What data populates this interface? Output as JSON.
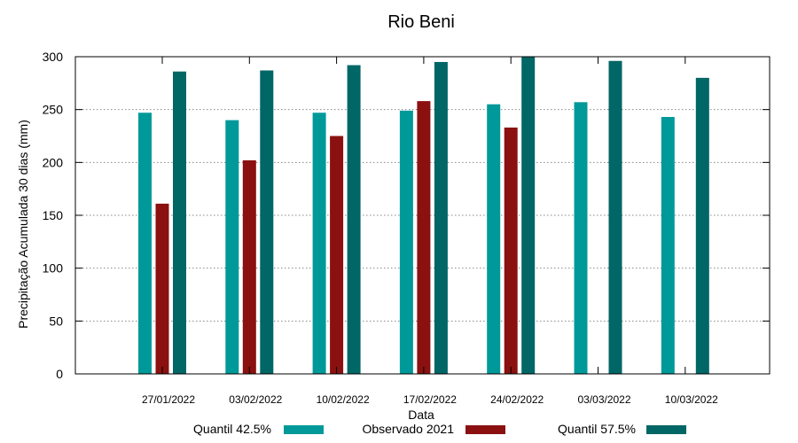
{
  "chart_data": {
    "type": "bar",
    "title": "Rio Beni",
    "xlabel": "Data",
    "ylabel": "Precipitação Acumulada 30 dias (mm)",
    "ylim": [
      0,
      300
    ],
    "yticks": [
      0,
      50,
      100,
      150,
      200,
      250,
      300
    ],
    "grid": true,
    "legend_position": "bottom",
    "categories": [
      "27/01/2022",
      "03/02/2022",
      "10/02/2022",
      "17/02/2022",
      "24/02/2022",
      "03/03/2022",
      "10/03/2022"
    ],
    "series": [
      {
        "name": "Quantil 42.5%",
        "color": "#009999",
        "values": [
          247,
          240,
          247,
          249,
          255,
          257,
          243
        ]
      },
      {
        "name": "Observado 2021",
        "color": "#8b1010",
        "values": [
          161,
          202,
          225,
          258,
          233,
          null,
          null
        ]
      },
      {
        "name": "Quantil 57.5%",
        "color": "#006666",
        "values": [
          286,
          287,
          292,
          295,
          300,
          296,
          280
        ]
      }
    ]
  }
}
